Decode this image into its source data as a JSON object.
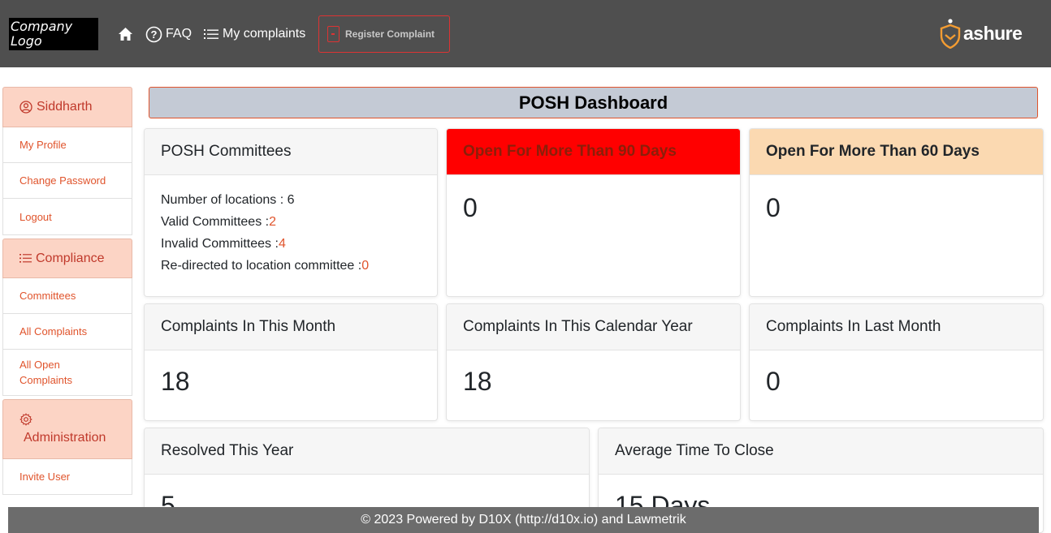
{
  "header": {
    "logo_line1": "Company",
    "logo_line2": "Logo",
    "nav": {
      "faq": "FAQ",
      "my_complaints": "My complaints",
      "register_complaint": "Register Complaint"
    },
    "brand": "ashure"
  },
  "sidebar": {
    "user": {
      "name": "Siddharth",
      "items": [
        "My Profile",
        "Change Password",
        "Logout"
      ]
    },
    "compliance": {
      "title": "Compliance",
      "items": [
        "Committees",
        "All Complaints",
        "All Open Complaints"
      ]
    },
    "administration": {
      "title": "Administration",
      "items": [
        "Invite User"
      ]
    }
  },
  "dashboard": {
    "title": "POSH Dashboard",
    "committees": {
      "title": "POSH Committees",
      "locations_label": "Number of locations : ",
      "locations_value": "6",
      "valid_label": "Valid Committees :",
      "valid_value": "2",
      "invalid_label": "Invalid Committees :",
      "invalid_value": "4",
      "redirected_label": "Re-directed to location committee :",
      "redirected_value": "0"
    },
    "open90": {
      "title": "Open For More Than 90 Days",
      "value": "0"
    },
    "open60": {
      "title": "Open For More Than 60 Days",
      "value": "0"
    },
    "this_month": {
      "title": "Complaints In This Month",
      "value": "18"
    },
    "calendar_year": {
      "title": "Complaints In This Calendar Year",
      "value": "18"
    },
    "last_month": {
      "title": "Complaints In Last Month",
      "value": "0"
    },
    "resolved_year": {
      "title": "Resolved This Year",
      "value": "5"
    },
    "avg_close": {
      "title": "Average Time To Close",
      "value": "15 Days"
    }
  },
  "footer": {
    "text": "© 2023 Powered by D10X (http://d10x.io) and Lawmetrik"
  },
  "colors": {
    "header_bg": "#4f4f4f",
    "accent": "#e0542c",
    "sidebar_head_bg": "#fcd4c5",
    "alert_red": "#ff0000",
    "alert_peach": "#fbd9b1"
  }
}
